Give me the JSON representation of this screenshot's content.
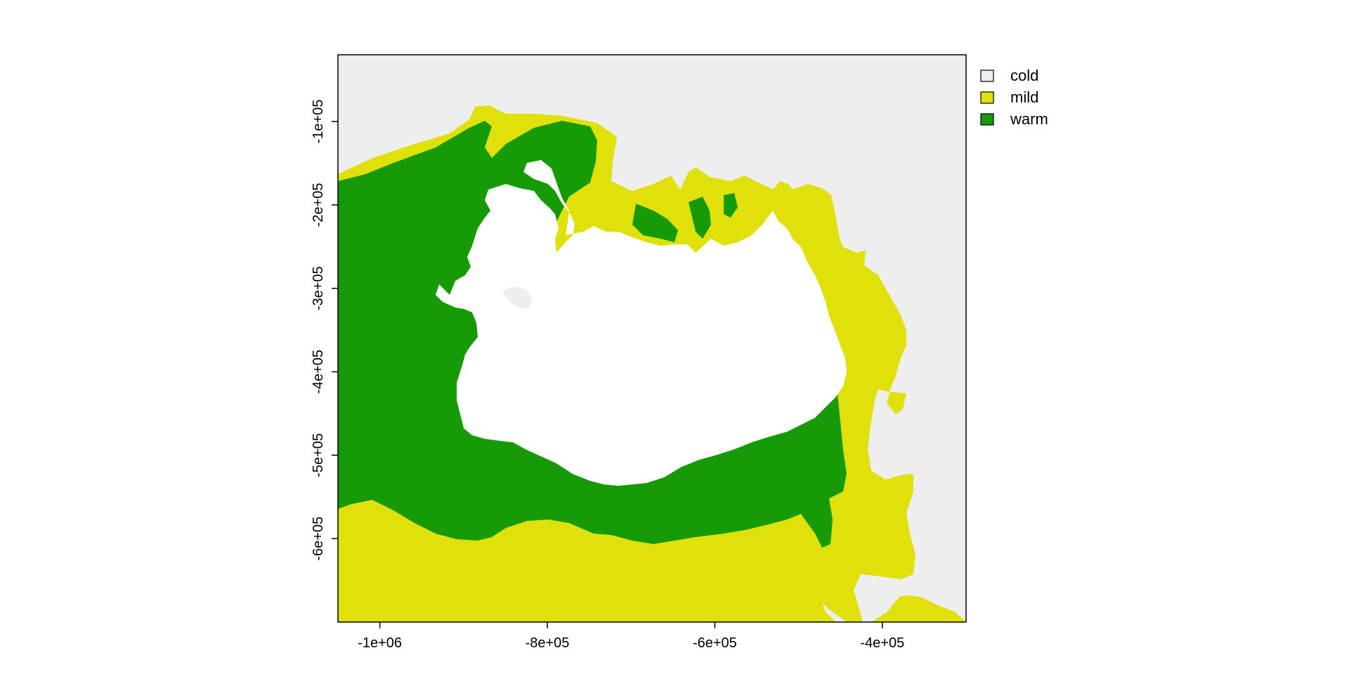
{
  "map": {
    "classes": [
      {
        "name": "cold",
        "color": "#EEEEEE"
      },
      {
        "name": "mild",
        "color": "#E0E00A"
      },
      {
        "name": "warm",
        "color": "#169B06"
      }
    ],
    "land_color": "#FFFFFF",
    "x_axis": {
      "ticks": [
        -1000000,
        -800000,
        -600000,
        -400000
      ],
      "tick_labels": [
        "-1e+06",
        "-8e+05",
        "-6e+05",
        "-4e+05"
      ],
      "range": [
        -1050000,
        -300000
      ]
    },
    "y_axis": {
      "ticks": [
        -100000,
        -200000,
        -300000,
        -400000,
        -500000,
        -600000
      ],
      "tick_labels": [
        "-1e+05",
        "-2e+05",
        "-3e+05",
        "-4e+05",
        "-5e+05",
        "-6e+05"
      ],
      "range": [
        -700000,
        -20000
      ]
    },
    "legend": {
      "position": "top-right",
      "entries": [
        "cold",
        "mild",
        "warm"
      ]
    }
  }
}
